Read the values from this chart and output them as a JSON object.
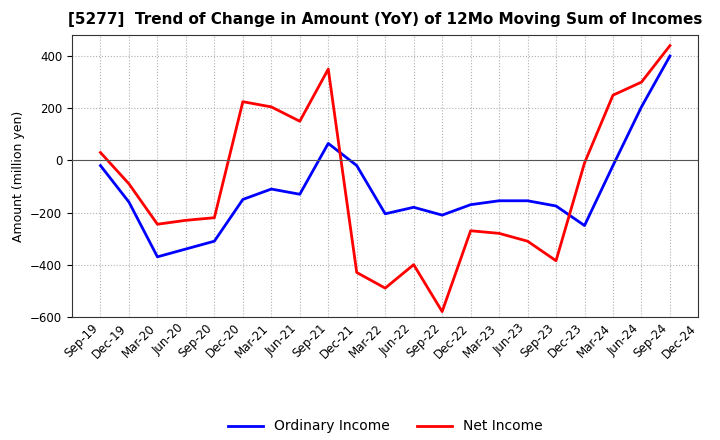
{
  "title": "[5277]  Trend of Change in Amount (YoY) of 12Mo Moving Sum of Incomes",
  "ylabel": "Amount (million yen)",
  "x_labels": [
    "Sep-19",
    "Dec-19",
    "Mar-20",
    "Jun-20",
    "Sep-20",
    "Dec-20",
    "Mar-21",
    "Jun-21",
    "Sep-21",
    "Dec-21",
    "Mar-22",
    "Jun-22",
    "Sep-22",
    "Dec-22",
    "Mar-23",
    "Jun-23",
    "Sep-23",
    "Dec-23",
    "Mar-24",
    "Jun-24",
    "Sep-24",
    "Dec-24"
  ],
  "ordinary_income": [
    -20,
    -160,
    -370,
    -340,
    -310,
    -150,
    -110,
    -130,
    65,
    -20,
    -205,
    -180,
    -210,
    -170,
    -155,
    -155,
    -175,
    -250,
    -20,
    205,
    400,
    null
  ],
  "net_income": [
    30,
    -90,
    -245,
    -230,
    -220,
    225,
    205,
    150,
    350,
    -430,
    -490,
    -400,
    -580,
    -270,
    -280,
    -310,
    -385,
    -10,
    250,
    300,
    440,
    null
  ],
  "ordinary_income_color": "#0000ff",
  "net_income_color": "#ff0000",
  "ylim": [
    -600,
    480
  ],
  "yticks": [
    -600,
    -400,
    -200,
    0,
    200,
    400
  ],
  "legend_labels": [
    "Ordinary Income",
    "Net Income"
  ],
  "background_color": "#ffffff",
  "grid_color": "#b0b0b0",
  "linewidth": 2.0,
  "title_fontsize": 11,
  "axis_label_fontsize": 9,
  "tick_fontsize": 8.5,
  "legend_fontsize": 10
}
